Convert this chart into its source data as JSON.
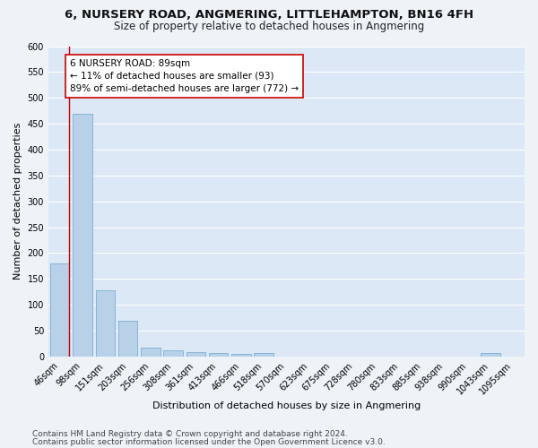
{
  "title": "6, NURSERY ROAD, ANGMERING, LITTLEHAMPTON, BN16 4FH",
  "subtitle": "Size of property relative to detached houses in Angmering",
  "xlabel": "Distribution of detached houses by size in Angmering",
  "ylabel": "Number of detached properties",
  "categories": [
    "46sqm",
    "98sqm",
    "151sqm",
    "203sqm",
    "256sqm",
    "308sqm",
    "361sqm",
    "413sqm",
    "466sqm",
    "518sqm",
    "570sqm",
    "623sqm",
    "675sqm",
    "728sqm",
    "780sqm",
    "833sqm",
    "885sqm",
    "938sqm",
    "990sqm",
    "1043sqm",
    "1095sqm"
  ],
  "values": [
    180,
    470,
    128,
    70,
    18,
    12,
    8,
    6,
    5,
    6,
    0,
    0,
    0,
    0,
    0,
    0,
    0,
    0,
    0,
    6,
    0
  ],
  "bar_color": "#b8d0e8",
  "bar_edge_color": "#7aafd4",
  "red_line_color": "#cc0000",
  "annotation_line1": "6 NURSERY ROAD: 89sqm",
  "annotation_line2": "← 11% of detached houses are smaller (93)",
  "annotation_line3": "89% of semi-detached houses are larger (772) →",
  "annotation_box_color": "#ffffff",
  "annotation_box_edge_color": "#cc0000",
  "ylim": [
    0,
    600
  ],
  "yticks": [
    0,
    50,
    100,
    150,
    200,
    250,
    300,
    350,
    400,
    450,
    500,
    550,
    600
  ],
  "footer_line1": "Contains HM Land Registry data © Crown copyright and database right 2024.",
  "footer_line2": "Contains public sector information licensed under the Open Government Licence v3.0.",
  "fig_bg_color": "#eef3f8",
  "ax_bg_color": "#dce8f5",
  "grid_color": "#ffffff",
  "title_fontsize": 9.5,
  "subtitle_fontsize": 8.5,
  "axis_label_fontsize": 8,
  "tick_fontsize": 7,
  "annotation_fontsize": 7.5,
  "footer_fontsize": 6.5
}
